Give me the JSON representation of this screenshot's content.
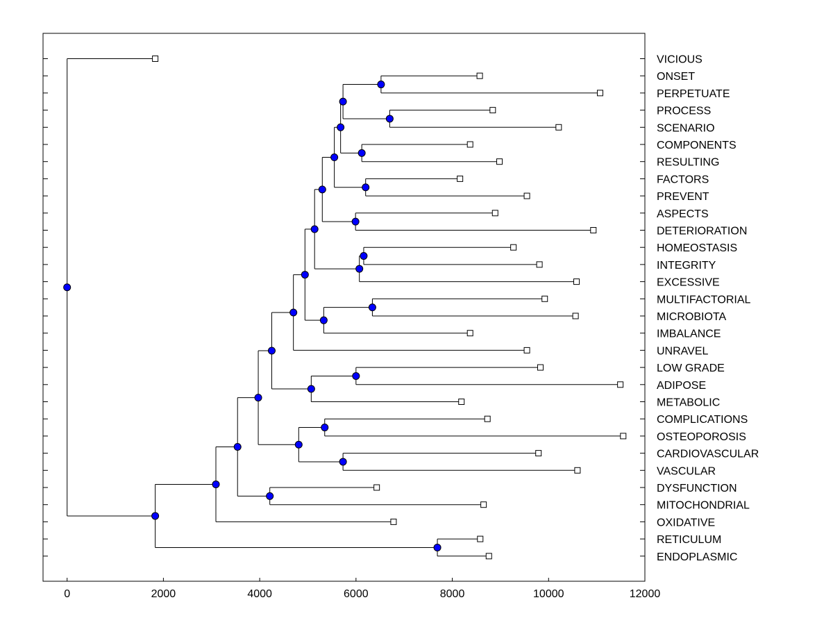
{
  "chart_data": {
    "type": "dendrogram",
    "orientation": "horizontal",
    "xlim": [
      -500,
      12000
    ],
    "xticks": [
      0,
      2000,
      4000,
      6000,
      8000,
      10000,
      12000
    ],
    "xtick_labels": [
      "0",
      "2000",
      "4000",
      "6000",
      "8000",
      "10000",
      "12000"
    ],
    "xlabel": "",
    "ylabel": "",
    "title": "",
    "grid": false,
    "leaves": [
      {
        "label": "VICIOUS",
        "x": 1830
      },
      {
        "label": "ONSET",
        "x": 8570
      },
      {
        "label": "PERPETUATE",
        "x": 11070
      },
      {
        "label": "PROCESS",
        "x": 8840
      },
      {
        "label": "SCENARIO",
        "x": 10210
      },
      {
        "label": "COMPONENTS",
        "x": 8370
      },
      {
        "label": "RESULTING",
        "x": 8980
      },
      {
        "label": "FACTORS",
        "x": 8160
      },
      {
        "label": "PREVENT",
        "x": 9550
      },
      {
        "label": "ASPECTS",
        "x": 8890
      },
      {
        "label": "DETERIORATION",
        "x": 10930
      },
      {
        "label": "HOMEOSTASIS",
        "x": 9270
      },
      {
        "label": "INTEGRITY",
        "x": 9810
      },
      {
        "label": "EXCESSIVE",
        "x": 10580
      },
      {
        "label": "MULTIFACTORIAL",
        "x": 9920
      },
      {
        "label": "MICROBIOTA",
        "x": 10560
      },
      {
        "label": "IMBALANCE",
        "x": 8370
      },
      {
        "label": "UNRAVEL",
        "x": 9550
      },
      {
        "label": "LOW GRADE",
        "x": 9830
      },
      {
        "label": "ADIPOSE",
        "x": 11490
      },
      {
        "label": "METABOLIC",
        "x": 8190
      },
      {
        "label": "COMPLICATIONS",
        "x": 8730
      },
      {
        "label": "OSTEOPOROSIS",
        "x": 11550
      },
      {
        "label": "CARDIOVASCULAR",
        "x": 9790
      },
      {
        "label": "VASCULAR",
        "x": 10600
      },
      {
        "label": "DYSFUNCTION",
        "x": 6430
      },
      {
        "label": "MITOCHONDRIAL",
        "x": 8650
      },
      {
        "label": "OXIDATIVE",
        "x": 6780
      },
      {
        "label": "RETICULUM",
        "x": 8580
      },
      {
        "label": "ENDOPLASMIC",
        "x": 8760
      }
    ],
    "merges": [
      {
        "id": "m_onset_perp",
        "x": 6520,
        "children": [
          "L1",
          "L2"
        ]
      },
      {
        "id": "m_proc_scen",
        "x": 6700,
        "children": [
          "L3",
          "L4"
        ]
      },
      {
        "id": "m_a",
        "x": 5730,
        "children": [
          "m_onset_perp",
          "m_proc_scen"
        ]
      },
      {
        "id": "m_comp_res",
        "x": 6120,
        "children": [
          "L5",
          "L6"
        ]
      },
      {
        "id": "m_b",
        "x": 5680,
        "children": [
          "m_a",
          "m_comp_res"
        ]
      },
      {
        "id": "m_fact_prev",
        "x": 6200,
        "children": [
          "L7",
          "L8"
        ]
      },
      {
        "id": "m_c",
        "x": 5550,
        "children": [
          "m_b",
          "m_fact_prev"
        ]
      },
      {
        "id": "m_asp_det",
        "x": 5990,
        "children": [
          "L9",
          "L10"
        ]
      },
      {
        "id": "m_d",
        "x": 5300,
        "children": [
          "m_c",
          "m_asp_det"
        ]
      },
      {
        "id": "m_homeo_integ",
        "x": 6160,
        "children": [
          "L11",
          "L12"
        ]
      },
      {
        "id": "m_e",
        "x": 6070,
        "children": [
          "m_homeo_integ",
          "L13"
        ]
      },
      {
        "id": "m_f",
        "x": 5140,
        "children": [
          "m_d",
          "m_e"
        ]
      },
      {
        "id": "m_multi_micro",
        "x": 6340,
        "children": [
          "L14",
          "L15"
        ]
      },
      {
        "id": "m_g",
        "x": 5330,
        "children": [
          "m_multi_micro",
          "L16"
        ]
      },
      {
        "id": "m_h",
        "x": 4940,
        "children": [
          "m_f",
          "m_g"
        ]
      },
      {
        "id": "m_i",
        "x": 4700,
        "children": [
          "m_h",
          "L17"
        ]
      },
      {
        "id": "m_low_adip",
        "x": 6000,
        "children": [
          "L18",
          "L19"
        ]
      },
      {
        "id": "m_j",
        "x": 5070,
        "children": [
          "m_low_adip",
          "L20"
        ]
      },
      {
        "id": "m_k",
        "x": 4250,
        "children": [
          "m_i",
          "m_j"
        ]
      },
      {
        "id": "m_comp_osteo",
        "x": 5350,
        "children": [
          "L21",
          "L22"
        ]
      },
      {
        "id": "m_cardio_vasc",
        "x": 5730,
        "children": [
          "L23",
          "L24"
        ]
      },
      {
        "id": "m_l",
        "x": 4810,
        "children": [
          "m_comp_osteo",
          "m_cardio_vasc"
        ]
      },
      {
        "id": "m_m",
        "x": 3970,
        "children": [
          "m_k",
          "m_l"
        ]
      },
      {
        "id": "m_dys_mito",
        "x": 4210,
        "children": [
          "L25",
          "L26"
        ]
      },
      {
        "id": "m_n",
        "x": 3540,
        "children": [
          "m_m",
          "m_dys_mito"
        ]
      },
      {
        "id": "m_o",
        "x": 3090,
        "children": [
          "m_n",
          "L27"
        ]
      },
      {
        "id": "m_ret_endo",
        "x": 7690,
        "children": [
          "L28",
          "L29"
        ]
      },
      {
        "id": "m_p",
        "x": 1830,
        "children": [
          "m_o",
          "m_ret_endo"
        ]
      },
      {
        "id": "m_root",
        "x": 0,
        "children": [
          "L0",
          "m_p"
        ]
      }
    ],
    "node_color": "#0000ff",
    "leaf_marker": "square"
  }
}
